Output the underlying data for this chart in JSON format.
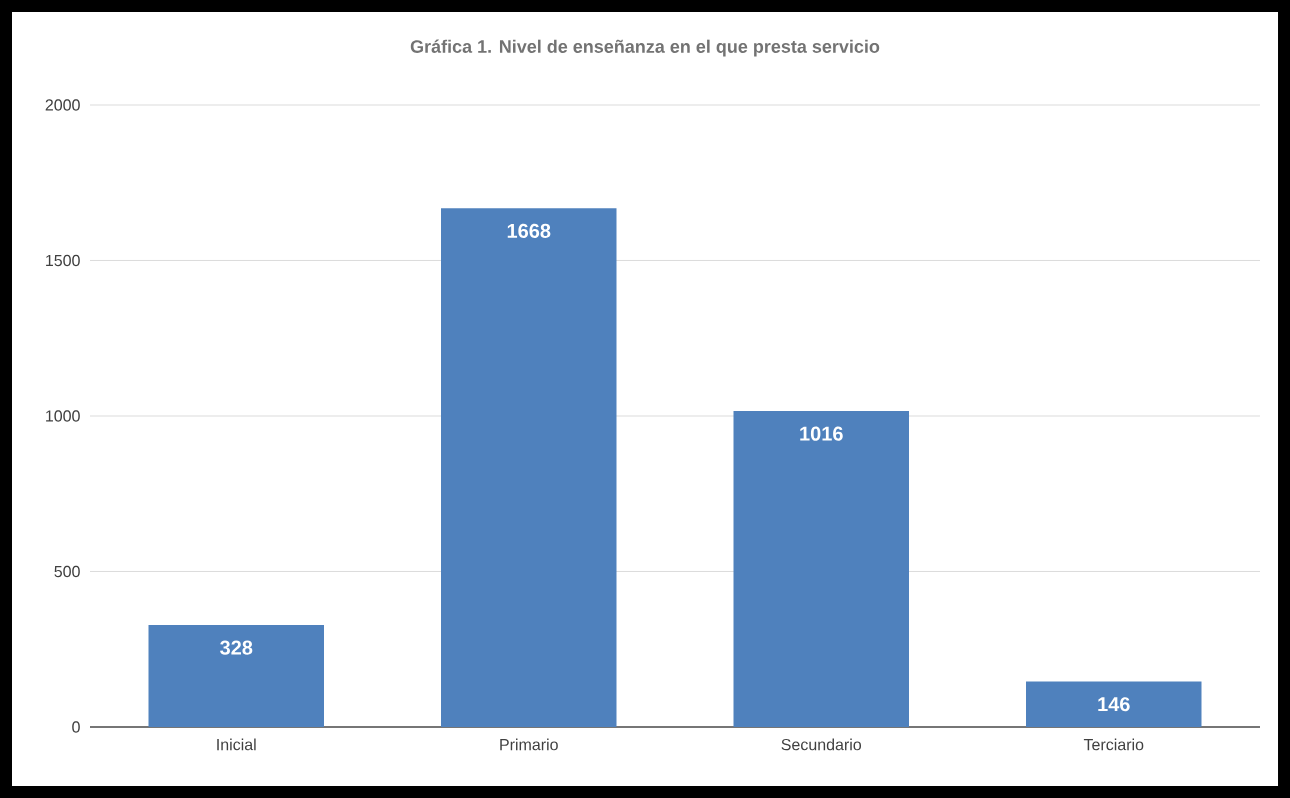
{
  "chart_data": {
    "type": "bar",
    "title": "Gráfica 1.  Nivel de enseñanza en el que presta servicio",
    "categories": [
      "Inicial",
      "Primario",
      "Secundario",
      "Terciario"
    ],
    "values": [
      328,
      1668,
      1016,
      146
    ],
    "color": "#4f81bd",
    "ylim": [
      0,
      2000
    ],
    "yticks": [
      0,
      500,
      1000,
      1500,
      2000
    ],
    "grid": "y",
    "data_labels": true
  }
}
